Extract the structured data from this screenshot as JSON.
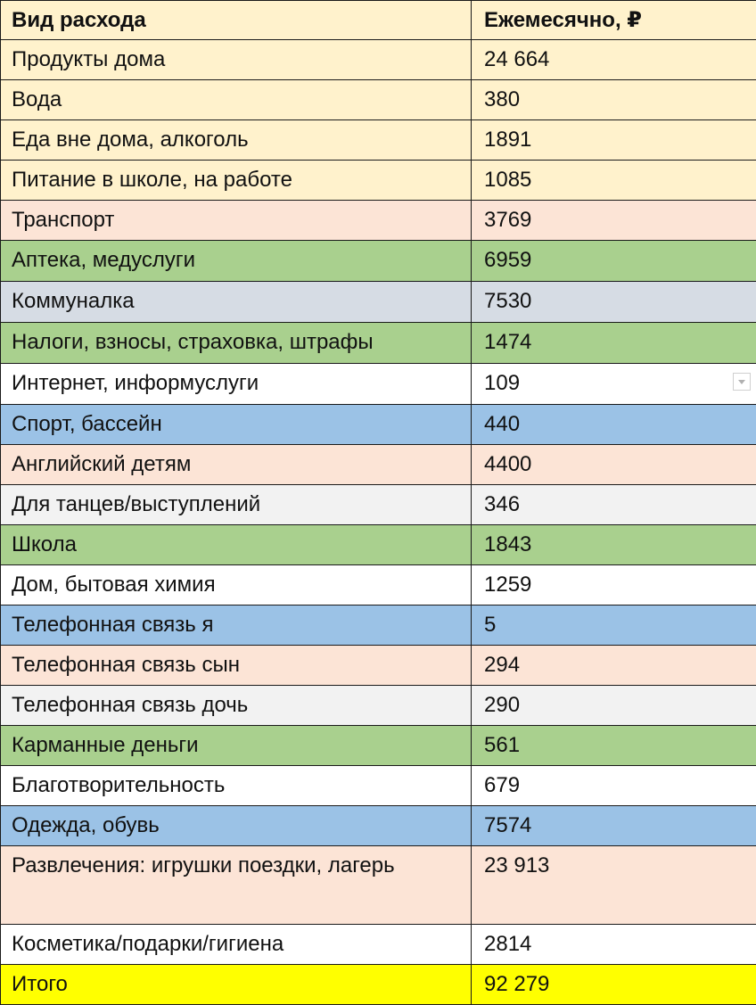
{
  "table": {
    "headers": {
      "category": "Вид расхода",
      "monthly": "Ежемесячно, ₽"
    },
    "colors": {
      "header": "#fff2cc",
      "cream": "#fff2cc",
      "peach": "#fce4d6",
      "green": "#a9d08e",
      "gray_blue": "#d6dce4",
      "white": "#ffffff",
      "blue": "#9bc2e6",
      "light_gray": "#f2f2f2",
      "yellow": "#ffff00"
    },
    "rows": [
      {
        "category": "Продукты дома",
        "monthly": "24 664"
      },
      {
        "category": "Вода",
        "monthly": "380"
      },
      {
        "category": "Еда вне дома, алкоголь",
        "monthly": "1891"
      },
      {
        "category": "Питание в школе, на работе",
        "monthly": "1085"
      },
      {
        "category": "Транспорт",
        "monthly": "3769"
      },
      {
        "category": "Аптека, медуслуги",
        "monthly": "6959"
      },
      {
        "category": "Коммуналка",
        "monthly": "7530"
      },
      {
        "category": "Налоги, взносы, страховка, штрафы",
        "monthly": "1474"
      },
      {
        "category": "Интернет, информуслуги",
        "monthly": "109"
      },
      {
        "category": "Спорт, бассейн",
        "monthly": "440"
      },
      {
        "category": "Английский детям",
        "monthly": "4400"
      },
      {
        "category": "Для танцев/выступлений",
        "monthly": "346"
      },
      {
        "category": "Школа",
        "monthly": "1843"
      },
      {
        "category": "Дом, бытовая химия",
        "monthly": "1259"
      },
      {
        "category": "Телефонная связь я",
        "monthly": "5"
      },
      {
        "category": "Телефонная связь сын",
        "monthly": "294"
      },
      {
        "category": "Телефонная связь дочь",
        "monthly": "290"
      },
      {
        "category": "Карманные деньги",
        "monthly": "561"
      },
      {
        "category": "Благотворительность",
        "monthly": "679"
      },
      {
        "category": "Одежда, обувь",
        "monthly": "7574"
      },
      {
        "category": "Развлечения: игрушки поездки, лагерь",
        "monthly": "23 913"
      },
      {
        "category": "Косметика/подарки/гигиена",
        "monthly": "2814"
      }
    ],
    "total": {
      "category": "Итого",
      "monthly": "92 279"
    }
  }
}
